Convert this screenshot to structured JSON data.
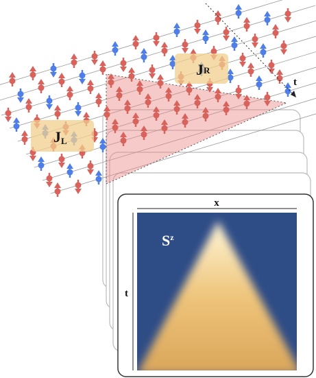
{
  "lattice": {
    "current_left": {
      "symbol": "J",
      "subscript": "L"
    },
    "current_right": {
      "symbol": "J",
      "subscript": "R"
    },
    "time_axis": "t"
  },
  "panel": {
    "x_axis": "x",
    "t_axis": "t",
    "quantity": {
      "symbol": "S",
      "superscript": "z"
    }
  }
}
